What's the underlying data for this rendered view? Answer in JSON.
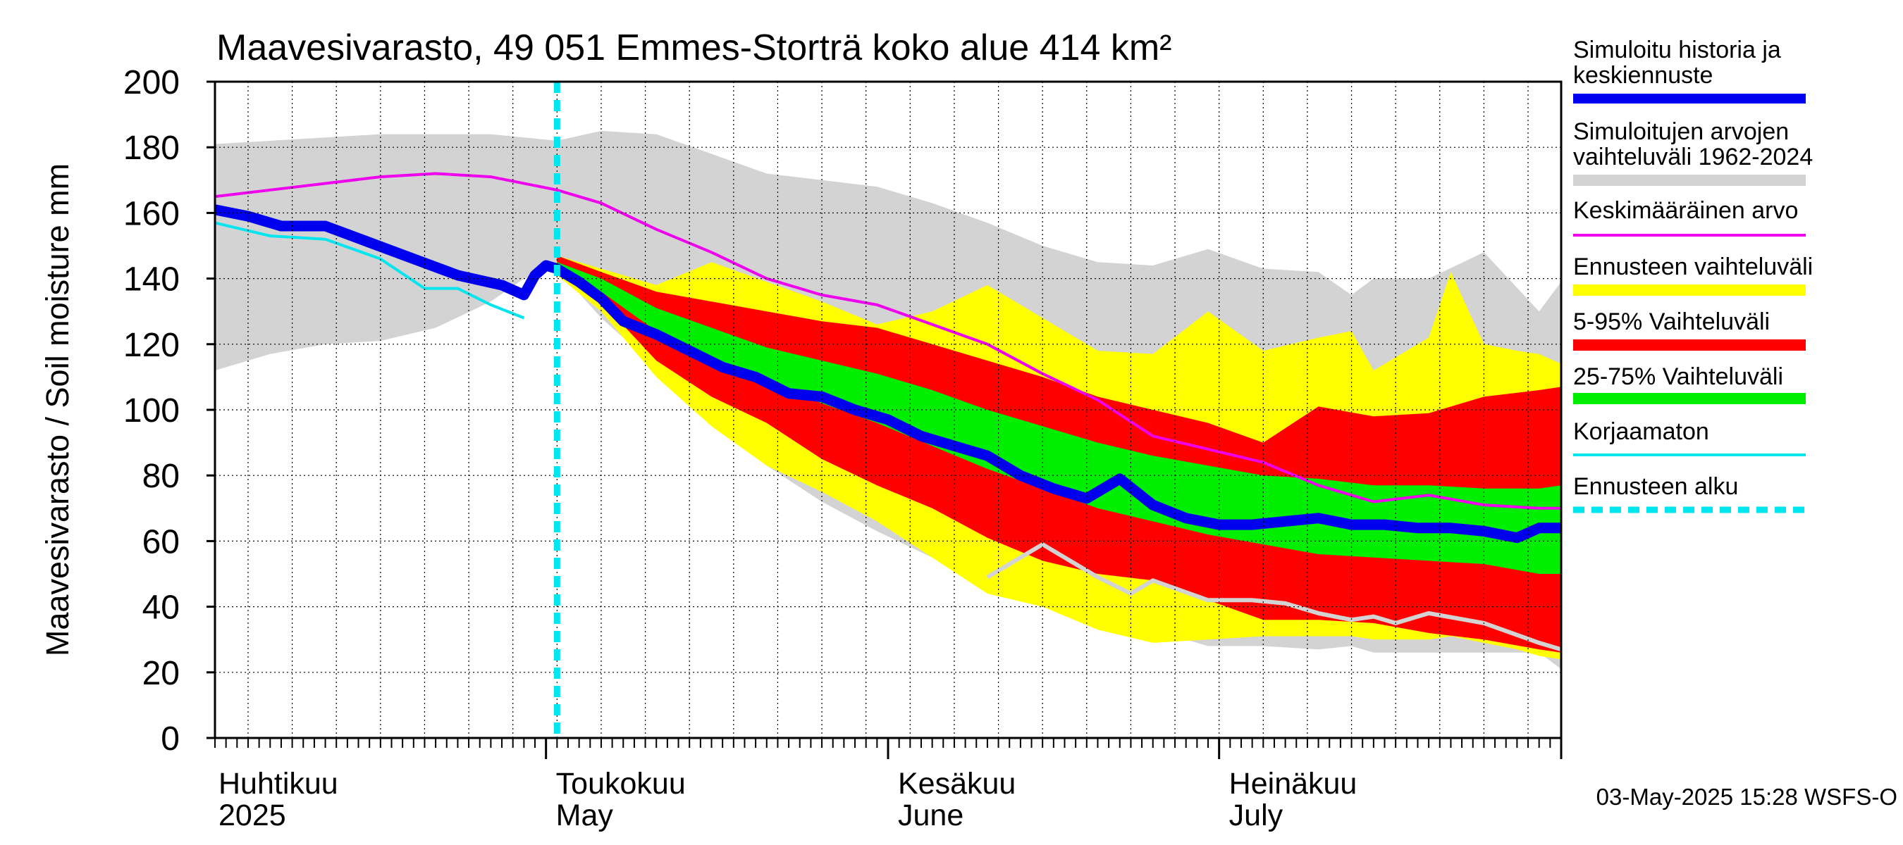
{
  "chart_data": {
    "type": "area",
    "title": "Maavesivarasto, 49 051 Emmes-Storträ koko alue 414 km²",
    "ylabel": "Maavesivarasto / Soil moisture   mm",
    "xlabel": "",
    "ylim": [
      0,
      200
    ],
    "yticks": [
      0,
      20,
      40,
      60,
      80,
      100,
      120,
      140,
      160,
      180,
      200
    ],
    "x_unit": "day (0 = 1 April 2025)",
    "xlim": [
      0,
      122
    ],
    "grid": true,
    "forecast_start_day": 31,
    "month_labels": [
      {
        "day": 0,
        "fi": "Huhtikuu",
        "en": "2025"
      },
      {
        "day": 30,
        "fi": "Toukokuu",
        "en": "May"
      },
      {
        "day": 61,
        "fi": "Kesäkuu",
        "en": "June"
      },
      {
        "day": 91,
        "fi": "Heinäkuu",
        "en": "July"
      }
    ],
    "month_boundaries": [
      30,
      61,
      91,
      122
    ],
    "timestamp": "03-May-2025 15:28 WSFS-O",
    "legend": [
      {
        "key": "history",
        "label": "Simuloitu historia ja keskiennuste",
        "color": "#0000ee",
        "style": "thick"
      },
      {
        "key": "range_hist",
        "label": "Simuloitujen arvojen vaihteluväli 1962-2024",
        "color": "#d3d3d3",
        "style": "band"
      },
      {
        "key": "mean",
        "label": "Keskimääräinen arvo",
        "color": "#ee00ee",
        "style": "line"
      },
      {
        "key": "forecast_range",
        "label": "Ennusteen vaihteluväli",
        "color": "#ffff00",
        "style": "band"
      },
      {
        "key": "p5_95",
        "label": "5-95% Vaihteluväli",
        "color": "#ff0000",
        "style": "band"
      },
      {
        "key": "p25_75",
        "label": "25-75% Vaihteluväli",
        "color": "#00ee00",
        "style": "band"
      },
      {
        "key": "uncorrected",
        "label": "Korjaamaton",
        "color": "#00e5ee",
        "style": "line"
      },
      {
        "key": "forecast_start",
        "label": "Ennusteen alku",
        "color": "#00e5ee",
        "style": "dashed"
      }
    ],
    "series": {
      "range_hist": {
        "x": [
          0,
          5,
          10,
          15,
          20,
          25,
          28,
          31,
          35,
          40,
          45,
          50,
          55,
          60,
          65,
          70,
          75,
          80,
          85,
          90,
          95,
          100,
          103,
          105,
          110,
          115,
          120,
          122
        ],
        "upper": [
          181,
          182,
          183,
          184,
          184,
          184,
          183,
          182,
          185,
          184,
          178,
          172,
          170,
          168,
          163,
          157,
          150,
          145,
          144,
          149,
          143,
          142,
          135,
          140,
          140,
          148,
          130,
          139
        ],
        "lower": [
          112,
          117,
          120,
          121,
          125,
          133,
          140,
          143,
          128,
          113,
          97,
          83,
          72,
          63,
          55,
          50,
          48,
          40,
          33,
          28,
          28,
          27,
          28,
          26,
          26,
          26,
          26,
          21
        ]
      },
      "mean": {
        "x": [
          0,
          5,
          10,
          15,
          20,
          25,
          31,
          35,
          40,
          45,
          50,
          55,
          60,
          65,
          70,
          75,
          80,
          85,
          90,
          95,
          100,
          105,
          110,
          115,
          120,
          122
        ],
        "y": [
          165,
          167,
          169,
          171,
          172,
          171,
          167,
          163,
          155,
          148,
          140,
          135,
          132,
          126,
          120,
          111,
          103,
          92,
          88,
          84,
          77,
          72,
          74,
          71,
          70,
          70
        ]
      },
      "history": {
        "x": [
          0,
          3,
          6,
          10,
          14,
          18,
          22,
          26,
          28,
          29,
          30,
          31,
          33,
          35,
          37,
          40,
          43,
          46,
          49,
          52,
          55,
          58,
          61,
          64,
          67,
          70,
          73,
          76,
          79,
          82,
          85,
          88,
          91,
          94,
          97,
          100,
          103,
          106,
          109,
          112,
          115,
          118,
          120,
          122
        ],
        "y": [
          161,
          159,
          156,
          156,
          151,
          146,
          141,
          138,
          135,
          141,
          144,
          143,
          139,
          134,
          127,
          123,
          118,
          113,
          110,
          105,
          104,
          100,
          97,
          92,
          89,
          86,
          80,
          76,
          73,
          79,
          71,
          67,
          65,
          65,
          66,
          67,
          65,
          65,
          64,
          64,
          63,
          61,
          64,
          64
        ]
      },
      "uncorrected": {
        "x": [
          0,
          5,
          10,
          15,
          19,
          22,
          25,
          28
        ],
        "y": [
          157,
          153,
          152,
          146,
          137,
          137,
          132,
          128
        ]
      },
      "p25_75": {
        "x": [
          31,
          35,
          40,
          45,
          50,
          55,
          60,
          65,
          70,
          75,
          80,
          85,
          90,
          95,
          100,
          105,
          110,
          115,
          120,
          122
        ],
        "upper": [
          145,
          140,
          131,
          125,
          119,
          115,
          111,
          106,
          100,
          95,
          90,
          86,
          83,
          80,
          79,
          77,
          77,
          76,
          76,
          77
        ],
        "lower": [
          143,
          136,
          124,
          116,
          109,
          102,
          96,
          89,
          82,
          76,
          70,
          66,
          62,
          59,
          56,
          55,
          54,
          53,
          50,
          50
        ]
      },
      "p5_95": {
        "x": [
          31,
          35,
          40,
          45,
          50,
          55,
          60,
          65,
          70,
          75,
          80,
          85,
          90,
          95,
          100,
          105,
          110,
          115,
          120,
          122
        ],
        "upper": [
          147,
          142,
          136,
          133,
          130,
          127,
          125,
          120,
          115,
          110,
          104,
          100,
          96,
          90,
          101,
          98,
          99,
          104,
          106,
          107
        ],
        "lower": [
          142,
          133,
          115,
          104,
          96,
          85,
          77,
          70,
          61,
          54,
          50,
          48,
          42,
          36,
          36,
          35,
          32,
          30,
          27,
          26
        ]
      },
      "forecast_range": {
        "x": [
          31,
          35,
          40,
          45,
          50,
          55,
          60,
          65,
          70,
          75,
          80,
          85,
          90,
          95,
          100,
          103,
          105,
          110,
          112,
          115,
          118,
          120,
          122
        ],
        "upper": [
          147,
          143,
          138,
          145,
          139,
          133,
          126,
          130,
          138,
          128,
          118,
          117,
          130,
          118,
          122,
          124,
          112,
          122,
          142,
          120,
          118,
          117,
          114
        ],
        "lower": [
          141,
          130,
          110,
          95,
          83,
          75,
          66,
          55,
          44,
          40,
          33,
          29,
          30,
          31,
          31,
          31,
          30,
          30,
          31,
          29,
          27,
          25,
          24
        ]
      },
      "min_sim": {
        "x": [
          70,
          73,
          75,
          80,
          83,
          85,
          90,
          94,
          97,
          100,
          103,
          105,
          107,
          110,
          115,
          120,
          122
        ],
        "y": [
          49,
          55,
          59,
          49,
          44,
          48,
          42,
          42,
          41,
          38,
          36,
          37,
          35,
          38,
          35,
          29,
          27
        ]
      }
    }
  }
}
